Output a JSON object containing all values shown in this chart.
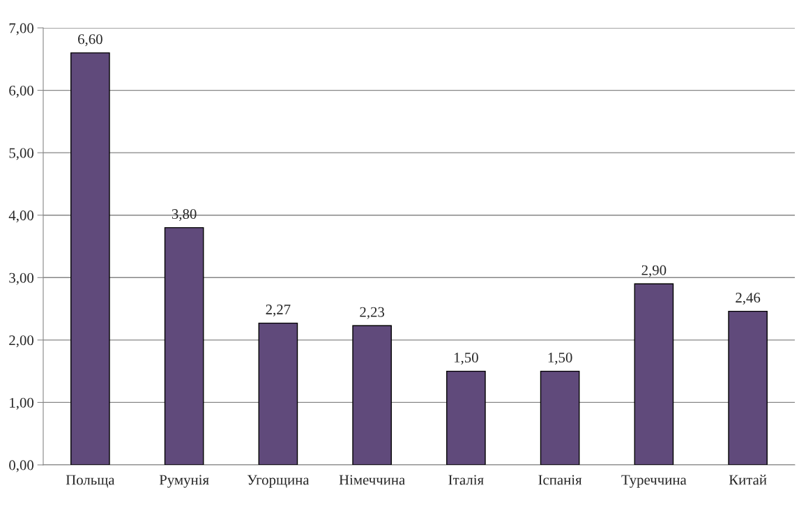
{
  "chart_data": {
    "type": "bar",
    "categories": [
      "Польща",
      "Румунія",
      "Угорщина",
      "Німеччина",
      "Італія",
      "Іспанія",
      "Туреччина",
      "Китай"
    ],
    "values": [
      6.6,
      3.8,
      2.27,
      2.23,
      1.5,
      1.5,
      2.9,
      2.46
    ],
    "value_labels": [
      "6,60",
      "3,80",
      "2,27",
      "2,23",
      "1,50",
      "1,50",
      "2,90",
      "2,46"
    ],
    "color": "#604a7b",
    "ylim": [
      0,
      7
    ],
    "yticks": [
      {
        "value": 0,
        "label": "0,00"
      },
      {
        "value": 1,
        "label": "1,00"
      },
      {
        "value": 2,
        "label": "2,00"
      },
      {
        "value": 3,
        "label": "3,00"
      },
      {
        "value": 4,
        "label": "4,00"
      },
      {
        "value": 5,
        "label": "5,00"
      },
      {
        "value": 6,
        "label": "6,00"
      },
      {
        "value": 7,
        "label": "7,00"
      }
    ],
    "grid": "y",
    "legend": false
  }
}
